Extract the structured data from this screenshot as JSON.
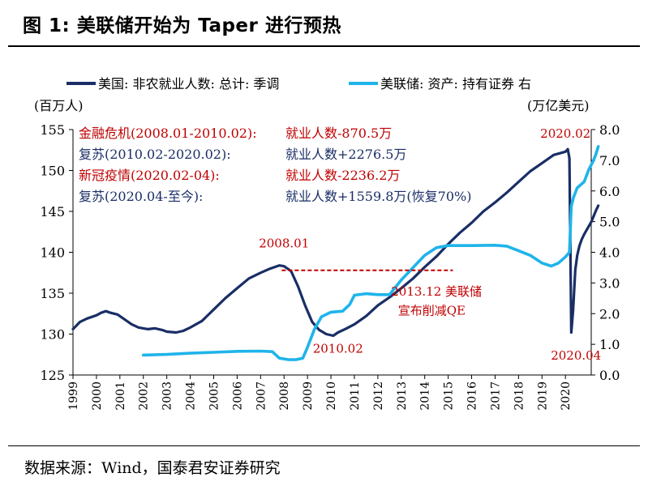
{
  "title": "图 1:  美联储开始为 Taper 进行预热",
  "source": "数据来源：Wind，国泰君安证券研究",
  "chart_data": {
    "type": "line",
    "legend": {
      "position": "top",
      "items": [
        {
          "label": "美国: 非农就业人数: 总计: 季调",
          "color": "#1a2e66"
        },
        {
          "label": "美联储: 资产: 持有证券  右",
          "color": "#1fb4ea"
        }
      ]
    },
    "left_axis": {
      "unit_label": "(百万人)",
      "range": [
        125,
        155
      ],
      "ticks": [
        "125",
        "130",
        "135",
        "140",
        "145",
        "150",
        "155"
      ]
    },
    "right_axis": {
      "unit_label": "(万亿美元)",
      "range": [
        0,
        8
      ],
      "ticks": [
        "0.0",
        "1.0",
        "2.0",
        "3.0",
        "4.0",
        "5.0",
        "6.0",
        "7.0",
        "8.0"
      ]
    },
    "x_axis": {
      "range": [
        1999,
        2021.1
      ],
      "ticks": [
        "1999",
        "2000",
        "2001",
        "2002",
        "2003",
        "2004",
        "2005",
        "2006",
        "2007",
        "2008",
        "2009",
        "2010",
        "2011",
        "2012",
        "2013",
        "2014",
        "2015",
        "2016",
        "2017",
        "2018",
        "2019",
        "2020"
      ]
    },
    "series": [
      {
        "name": "美国: 非农就业人数: 总计: 季调",
        "axis": "left",
        "color": "#1a2e66",
        "points": [
          [
            1999.0,
            130.6
          ],
          [
            1999.3,
            131.5
          ],
          [
            1999.6,
            131.9
          ],
          [
            2000.0,
            132.3
          ],
          [
            2000.2,
            132.6
          ],
          [
            2000.4,
            132.8
          ],
          [
            2000.6,
            132.6
          ],
          [
            2000.9,
            132.4
          ],
          [
            2001.2,
            131.8
          ],
          [
            2001.5,
            131.2
          ],
          [
            2001.8,
            130.8
          ],
          [
            2002.2,
            130.6
          ],
          [
            2002.5,
            130.7
          ],
          [
            2002.8,
            130.5
          ],
          [
            2003.0,
            130.3
          ],
          [
            2003.4,
            130.2
          ],
          [
            2003.7,
            130.4
          ],
          [
            2004.0,
            130.8
          ],
          [
            2004.5,
            131.6
          ],
          [
            2005.0,
            133.0
          ],
          [
            2005.5,
            134.4
          ],
          [
            2006.0,
            135.6
          ],
          [
            2006.5,
            136.8
          ],
          [
            2007.0,
            137.5
          ],
          [
            2007.4,
            138.0
          ],
          [
            2007.8,
            138.4
          ],
          [
            2008.0,
            138.3
          ],
          [
            2008.3,
            137.7
          ],
          [
            2008.6,
            135.8
          ],
          [
            2008.9,
            133.5
          ],
          [
            2009.2,
            131.5
          ],
          [
            2009.5,
            130.5
          ],
          [
            2009.8,
            130.0
          ],
          [
            2010.1,
            129.8
          ],
          [
            2010.3,
            130.2
          ],
          [
            2010.6,
            130.6
          ],
          [
            2011.0,
            131.2
          ],
          [
            2011.5,
            132.2
          ],
          [
            2012.0,
            133.5
          ],
          [
            2012.5,
            134.5
          ],
          [
            2013.0,
            135.6
          ],
          [
            2013.5,
            136.8
          ],
          [
            2014.0,
            138.2
          ],
          [
            2014.5,
            139.5
          ],
          [
            2015.0,
            141.0
          ],
          [
            2015.5,
            142.4
          ],
          [
            2016.0,
            143.6
          ],
          [
            2016.5,
            145.0
          ],
          [
            2017.0,
            146.1
          ],
          [
            2017.5,
            147.3
          ],
          [
            2018.0,
            148.6
          ],
          [
            2018.5,
            149.9
          ],
          [
            2019.0,
            150.9
          ],
          [
            2019.5,
            151.9
          ],
          [
            2020.0,
            152.3
          ],
          [
            2020.1,
            152.6
          ],
          [
            2020.17,
            151.5
          ],
          [
            2020.25,
            130.2
          ],
          [
            2020.33,
            133.0
          ],
          [
            2020.42,
            137.8
          ],
          [
            2020.5,
            139.6
          ],
          [
            2020.6,
            140.8
          ],
          [
            2020.7,
            141.6
          ],
          [
            2020.8,
            142.2
          ],
          [
            2020.9,
            142.7
          ],
          [
            2021.0,
            143.2
          ],
          [
            2021.1,
            143.7
          ],
          [
            2021.2,
            144.4
          ],
          [
            2021.3,
            145.1
          ],
          [
            2021.4,
            145.7
          ]
        ]
      },
      {
        "name": "美联储: 资产: 持有证券",
        "axis": "right",
        "color": "#1fb4ea",
        "points": [
          [
            2002.0,
            0.65
          ],
          [
            2003.0,
            0.67
          ],
          [
            2004.0,
            0.71
          ],
          [
            2005.0,
            0.74
          ],
          [
            2006.0,
            0.77
          ],
          [
            2007.0,
            0.78
          ],
          [
            2007.5,
            0.76
          ],
          [
            2007.8,
            0.55
          ],
          [
            2008.2,
            0.5
          ],
          [
            2008.5,
            0.5
          ],
          [
            2008.8,
            0.55
          ],
          [
            2009.0,
            0.9
          ],
          [
            2009.3,
            1.5
          ],
          [
            2009.6,
            1.9
          ],
          [
            2010.0,
            2.05
          ],
          [
            2010.5,
            2.08
          ],
          [
            2010.8,
            2.3
          ],
          [
            2011.0,
            2.6
          ],
          [
            2011.5,
            2.65
          ],
          [
            2012.0,
            2.62
          ],
          [
            2012.5,
            2.62
          ],
          [
            2013.0,
            3.1
          ],
          [
            2013.5,
            3.5
          ],
          [
            2014.0,
            3.9
          ],
          [
            2014.5,
            4.15
          ],
          [
            2015.0,
            4.22
          ],
          [
            2016.0,
            4.22
          ],
          [
            2017.0,
            4.23
          ],
          [
            2017.5,
            4.2
          ],
          [
            2018.0,
            4.05
          ],
          [
            2018.5,
            3.9
          ],
          [
            2019.0,
            3.65
          ],
          [
            2019.4,
            3.55
          ],
          [
            2019.7,
            3.65
          ],
          [
            2020.0,
            3.85
          ],
          [
            2020.17,
            4.0
          ],
          [
            2020.25,
            5.5
          ],
          [
            2020.35,
            5.8
          ],
          [
            2020.5,
            6.1
          ],
          [
            2020.8,
            6.3
          ],
          [
            2021.0,
            6.7
          ],
          [
            2021.2,
            7.0
          ],
          [
            2021.3,
            7.2
          ],
          [
            2021.4,
            7.45
          ]
        ]
      }
    ],
    "reference_line": {
      "from_x": 2007.9,
      "to_x": 2015.2,
      "y": 137.8,
      "axis": "left",
      "color": "#c00000",
      "style": "dashed"
    },
    "period_notes": [
      {
        "label": "金融危机(2008.01-2010.02):",
        "value": "就业人数-870.5万",
        "color": "#c00000"
      },
      {
        "label": "复苏(2010.02-2020.02):",
        "value": "就业人数+2276.5万",
        "color": "#1a2e66"
      },
      {
        "label": "新冠疫情(2020.02-04):",
        "value": "就业人数-2236.2万",
        "color": "#c00000"
      },
      {
        "label": "复苏(2020.04-至今):",
        "value": "就业人数+1559.8万(恢复70%)",
        "color": "#1a2e66"
      }
    ],
    "annotations": [
      {
        "text": "2008.01",
        "x": 2008.0,
        "y": 140.6,
        "color": "#c00000"
      },
      {
        "text": "2010.02",
        "x": 2010.3,
        "y": 127.7,
        "color": "#c00000"
      },
      {
        "text": "2020.02",
        "x": 2020.0,
        "y": 154.0,
        "color": "#c00000"
      },
      {
        "text": "2020.04",
        "x": 2020.45,
        "y": 126.9,
        "color": "#c00000"
      },
      {
        "text": "2013.12 美联储",
        "x": 2014.5,
        "y": 134.7,
        "color": "#c00000"
      },
      {
        "text": "宣布削减QE",
        "x": 2014.3,
        "y": 132.4,
        "color": "#c00000"
      }
    ]
  }
}
